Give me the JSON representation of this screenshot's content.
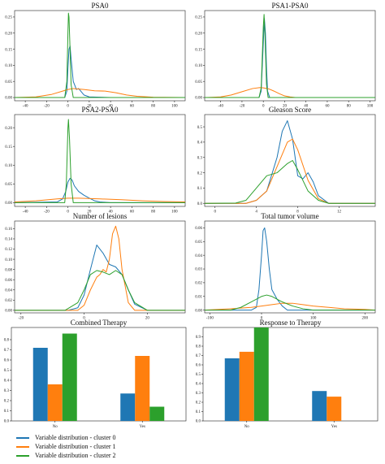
{
  "colors": {
    "cluster0": "#1f77b4",
    "cluster1": "#ff7f0e",
    "cluster2": "#2ca02c"
  },
  "legend": [
    {
      "label": "Variable distribution - cluster 0",
      "color": "#1f77b4"
    },
    {
      "label": "Variable distribution - cluster 1",
      "color": "#ff7f0e"
    },
    {
      "label": "Variable distribution - cluster 2",
      "color": "#2ca02c"
    }
  ],
  "chart_data": [
    {
      "type": "line",
      "title": "PSA0",
      "xlim": [
        -50,
        110
      ],
      "ylim": [
        -0.01,
        0.27
      ],
      "xticks": [
        -40,
        -20,
        0,
        20,
        40,
        60,
        80,
        100
      ],
      "yticks": [
        0.0,
        0.05,
        0.1,
        0.15,
        0.2,
        0.25
      ],
      "ytick_decimals": 2,
      "series": [
        {
          "x": [
            -50,
            -3,
            -1,
            0,
            1,
            2,
            3,
            5,
            8,
            10,
            12,
            15,
            20,
            40,
            110
          ],
          "y": [
            0,
            0,
            0.02,
            0.09,
            0.15,
            0.16,
            0.12,
            0.05,
            0.025,
            0.028,
            0.02,
            0.008,
            0.002,
            0,
            0
          ]
        },
        {
          "x": [
            -50,
            -30,
            -15,
            -5,
            0,
            5,
            15,
            25,
            35,
            45,
            55,
            65,
            80,
            110
          ],
          "y": [
            0,
            0.002,
            0.01,
            0.02,
            0.025,
            0.028,
            0.025,
            0.021,
            0.02,
            0.015,
            0.008,
            0.004,
            0.001,
            0
          ]
        },
        {
          "x": [
            -50,
            -3,
            -1,
            0,
            0.5,
            1,
            2,
            3,
            5,
            110
          ],
          "y": [
            0,
            0,
            0.05,
            0.2,
            0.262,
            0.25,
            0.15,
            0.04,
            0,
            0
          ]
        }
      ]
    },
    {
      "type": "line",
      "title": "PSA1-PSA0",
      "xlim": [
        -55,
        105
      ],
      "ylim": [
        -0.01,
        0.27
      ],
      "xticks": [
        -40,
        -20,
        0,
        20,
        40,
        60,
        80,
        100
      ],
      "yticks": [
        0.0,
        0.05,
        0.1,
        0.15,
        0.2,
        0.25
      ],
      "ytick_decimals": 2,
      "series": [
        {
          "x": [
            -55,
            -4,
            -2,
            0,
            1,
            2,
            3,
            4,
            6,
            105
          ],
          "y": [
            0,
            0,
            0.02,
            0.17,
            0.245,
            0.2,
            0.09,
            0.02,
            0,
            0
          ]
        },
        {
          "x": [
            -55,
            -40,
            -30,
            -20,
            -10,
            -3,
            0,
            5,
            10,
            15,
            20,
            25,
            30,
            105
          ],
          "y": [
            0,
            0.002,
            0.008,
            0.018,
            0.028,
            0.031,
            0.03,
            0.027,
            0.02,
            0.012,
            0.005,
            0.002,
            0,
            0
          ]
        },
        {
          "x": [
            -55,
            -4,
            -2,
            0,
            0.7,
            1.5,
            3,
            4.5,
            105
          ],
          "y": [
            0,
            0,
            0.03,
            0.22,
            0.258,
            0.2,
            0.04,
            0,
            0
          ]
        }
      ]
    },
    {
      "type": "line",
      "title": "PSA2-PSA0",
      "xlim": [
        -50,
        110
      ],
      "ylim": [
        -0.01,
        0.235
      ],
      "xticks": [
        -40,
        -20,
        0,
        20,
        40,
        60,
        80,
        100
      ],
      "yticks": [
        0.0,
        0.05,
        0.1,
        0.15,
        0.2
      ],
      "ytick_decimals": 2,
      "series": [
        {
          "x": [
            -50,
            -10,
            -5,
            -2,
            0,
            2,
            4,
            6,
            10,
            15,
            20,
            25,
            30,
            40,
            110
          ],
          "y": [
            0,
            0.002,
            0.01,
            0.03,
            0.055,
            0.065,
            0.06,
            0.045,
            0.03,
            0.02,
            0.012,
            0.005,
            0.002,
            0,
            0
          ]
        },
        {
          "x": [
            -50,
            -30,
            -10,
            0,
            10,
            30,
            50,
            70,
            90,
            110
          ],
          "y": [
            0.002,
            0.005,
            0.01,
            0.012,
            0.012,
            0.01,
            0.008,
            0.005,
            0.003,
            0.002
          ]
        },
        {
          "x": [
            -50,
            -3,
            -1.5,
            0,
            0.5,
            1.5,
            3,
            5,
            110
          ],
          "y": [
            0,
            0,
            0.05,
            0.2,
            0.222,
            0.17,
            0.05,
            0,
            0
          ]
        }
      ]
    },
    {
      "type": "line",
      "title": "Gleason Score",
      "xlim": [
        -1,
        15.5
      ],
      "ylim": [
        -0.02,
        0.58
      ],
      "xticks": [
        0,
        4,
        8,
        12
      ],
      "yticks": [
        0.0,
        0.1,
        0.2,
        0.3,
        0.4,
        0.5
      ],
      "ytick_decimals": 1,
      "series": [
        {
          "x": [
            -1,
            3,
            4,
            5,
            6,
            6.5,
            7,
            7.5,
            8,
            8.5,
            9,
            9.5,
            10,
            11,
            15.5
          ],
          "y": [
            0,
            0,
            0.02,
            0.08,
            0.3,
            0.47,
            0.54,
            0.42,
            0.18,
            0.16,
            0.2,
            0.14,
            0.05,
            0,
            0
          ]
        },
        {
          "x": [
            -1,
            3,
            4,
            5,
            6,
            7,
            7.5,
            8,
            9,
            10,
            11,
            15.5
          ],
          "y": [
            0,
            0,
            0.02,
            0.08,
            0.24,
            0.4,
            0.42,
            0.35,
            0.15,
            0.03,
            0,
            0
          ]
        },
        {
          "x": [
            -1,
            2,
            3,
            4,
            5,
            6,
            7,
            7.5,
            8,
            9,
            10,
            11,
            15.5
          ],
          "y": [
            0,
            0.002,
            0.02,
            0.1,
            0.18,
            0.2,
            0.26,
            0.28,
            0.22,
            0.08,
            0.02,
            0,
            0
          ]
        }
      ]
    },
    {
      "type": "line",
      "title": "Number of lesions",
      "xlim": [
        -22,
        32
      ],
      "ylim": [
        -0.005,
        0.175
      ],
      "xticks": [
        -20,
        0,
        20
      ],
      "yticks": [
        0.0,
        0.02,
        0.04,
        0.06,
        0.08,
        0.1,
        0.12,
        0.14,
        0.16
      ],
      "ytick_decimals": 2,
      "series": [
        {
          "x": [
            -22,
            -5,
            -2,
            0,
            2,
            4,
            6,
            8,
            10,
            12,
            14,
            16,
            20,
            32
          ],
          "y": [
            0,
            0,
            0.005,
            0.03,
            0.08,
            0.128,
            0.112,
            0.09,
            0.085,
            0.07,
            0.04,
            0.012,
            0,
            0
          ]
        },
        {
          "x": [
            -22,
            -2,
            0,
            2,
            4,
            5,
            6,
            7,
            8,
            9,
            10,
            11,
            12,
            14,
            16,
            32
          ],
          "y": [
            0,
            0,
            0.01,
            0.04,
            0.065,
            0.07,
            0.08,
            0.075,
            0.1,
            0.15,
            0.165,
            0.14,
            0.08,
            0.015,
            0,
            0
          ]
        },
        {
          "x": [
            -22,
            -6,
            -2,
            0,
            2,
            4,
            6,
            8,
            10,
            12,
            14,
            16,
            20,
            32
          ],
          "y": [
            0,
            0,
            0.015,
            0.04,
            0.07,
            0.078,
            0.075,
            0.07,
            0.078,
            0.07,
            0.04,
            0.015,
            0,
            0
          ]
        }
      ]
    },
    {
      "type": "line",
      "title": "Total tumor volume",
      "xlim": [
        -110,
        220
      ],
      "ylim": [
        -0.002,
        0.065
      ],
      "xticks": [
        -100,
        0,
        100,
        200
      ],
      "yticks": [
        0.0,
        0.01,
        0.02,
        0.03,
        0.04,
        0.05,
        0.06
      ],
      "ytick_decimals": 2,
      "series": [
        {
          "x": [
            -110,
            -20,
            -10,
            -5,
            0,
            3,
            6,
            10,
            15,
            20,
            30,
            40,
            50,
            220
          ],
          "y": [
            0,
            0,
            0.002,
            0.015,
            0.04,
            0.058,
            0.06,
            0.05,
            0.03,
            0.015,
            0.008,
            0.003,
            0,
            0
          ]
        },
        {
          "x": [
            -110,
            -60,
            -20,
            0,
            20,
            40,
            60,
            80,
            100,
            130,
            160,
            200,
            220
          ],
          "y": [
            0,
            0.001,
            0.002,
            0.003,
            0.004,
            0.005,
            0.005,
            0.004,
            0.003,
            0.002,
            0.001,
            0.0005,
            0
          ]
        },
        {
          "x": [
            -110,
            -60,
            -40,
            -20,
            0,
            10,
            20,
            40,
            60,
            80,
            100,
            220
          ],
          "y": [
            0,
            0,
            0.002,
            0.006,
            0.01,
            0.011,
            0.01,
            0.006,
            0.003,
            0.001,
            0,
            0
          ]
        }
      ]
    },
    {
      "type": "bar",
      "title": "Combined Therapy",
      "ylim": [
        0,
        0.92
      ],
      "categories": [
        "No",
        "Yes"
      ],
      "yticks": [
        0.0,
        0.1,
        0.2,
        0.3,
        0.4,
        0.5,
        0.6,
        0.7,
        0.8
      ],
      "ytick_decimals": 1,
      "series": [
        {
          "values": [
            0.72,
            0.27
          ]
        },
        {
          "values": [
            0.36,
            0.64
          ]
        },
        {
          "values": [
            0.86,
            0.14
          ]
        }
      ]
    },
    {
      "type": "bar",
      "title": "Response to Therapy",
      "ylim": [
        0,
        1.0
      ],
      "categories": [
        "No",
        "Yes"
      ],
      "yticks": [
        0.0,
        0.1,
        0.2,
        0.3,
        0.4,
        0.5,
        0.6,
        0.7,
        0.8,
        0.9
      ],
      "ytick_decimals": 1,
      "series": [
        {
          "values": [
            0.67,
            0.32
          ]
        },
        {
          "values": [
            0.74,
            0.26
          ]
        },
        {
          "values": [
            1.0,
            0.0
          ]
        }
      ]
    }
  ]
}
